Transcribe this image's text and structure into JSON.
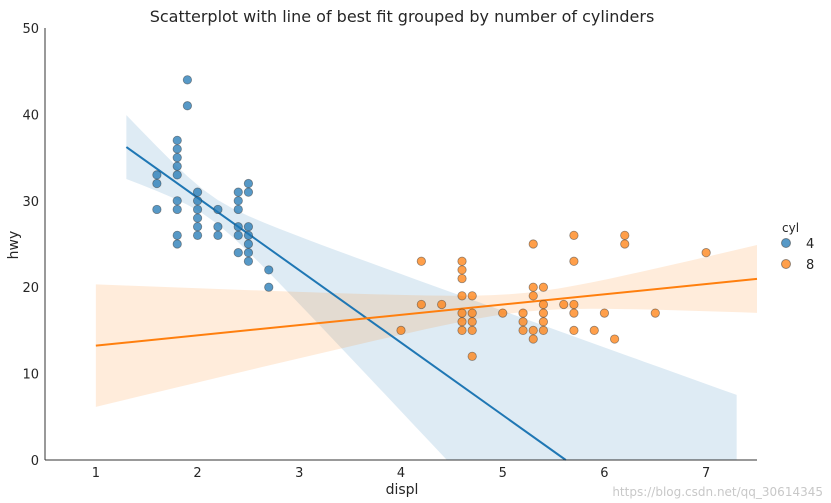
{
  "chart_data": {
    "type": "scatter",
    "title": "Scatterplot with line of best fit grouped by number of cylinders",
    "xlabel": "displ",
    "ylabel": "hwy",
    "xlim": [
      0.5,
      7.5
    ],
    "ylim": [
      0,
      50
    ],
    "xticks": [
      1,
      2,
      3,
      4,
      5,
      6,
      7
    ],
    "yticks": [
      0,
      10,
      20,
      30,
      40,
      50
    ],
    "grid": false,
    "legend": {
      "title": "cyl",
      "placement": "right"
    },
    "series": [
      {
        "name": "4",
        "color": "#1f77b4",
        "points": [
          [
            1.6,
            33
          ],
          [
            1.6,
            32
          ],
          [
            1.6,
            29
          ],
          [
            1.8,
            37
          ],
          [
            1.8,
            36
          ],
          [
            1.8,
            35
          ],
          [
            1.8,
            34
          ],
          [
            1.8,
            33
          ],
          [
            1.8,
            30
          ],
          [
            1.8,
            29
          ],
          [
            1.8,
            26
          ],
          [
            1.8,
            25
          ],
          [
            1.9,
            44
          ],
          [
            1.9,
            41
          ],
          [
            2.0,
            31
          ],
          [
            2.0,
            30
          ],
          [
            2.0,
            29
          ],
          [
            2.0,
            28
          ],
          [
            2.0,
            27
          ],
          [
            2.0,
            26
          ],
          [
            2.2,
            29
          ],
          [
            2.2,
            27
          ],
          [
            2.2,
            26
          ],
          [
            2.4,
            31
          ],
          [
            2.4,
            30
          ],
          [
            2.4,
            29
          ],
          [
            2.4,
            27
          ],
          [
            2.4,
            26
          ],
          [
            2.4,
            24
          ],
          [
            2.5,
            32
          ],
          [
            2.5,
            31
          ],
          [
            2.5,
            27
          ],
          [
            2.5,
            26
          ],
          [
            2.5,
            25
          ],
          [
            2.5,
            24
          ],
          [
            2.5,
            23
          ],
          [
            2.7,
            22
          ],
          [
            2.7,
            20
          ]
        ]
      },
      {
        "name": "8",
        "color": "#ff7f0e",
        "points": [
          [
            4.0,
            15
          ],
          [
            4.2,
            23
          ],
          [
            4.2,
            18
          ],
          [
            4.4,
            18
          ],
          [
            4.6,
            23
          ],
          [
            4.6,
            22
          ],
          [
            4.6,
            21
          ],
          [
            4.6,
            19
          ],
          [
            4.6,
            17
          ],
          [
            4.6,
            16
          ],
          [
            4.6,
            15
          ],
          [
            4.7,
            19
          ],
          [
            4.7,
            17
          ],
          [
            4.7,
            16
          ],
          [
            4.7,
            15
          ],
          [
            4.7,
            12
          ],
          [
            5.0,
            17
          ],
          [
            5.2,
            17
          ],
          [
            5.2,
            16
          ],
          [
            5.2,
            15
          ],
          [
            5.3,
            25
          ],
          [
            5.3,
            20
          ],
          [
            5.3,
            19
          ],
          [
            5.3,
            15
          ],
          [
            5.3,
            14
          ],
          [
            5.4,
            20
          ],
          [
            5.4,
            18
          ],
          [
            5.4,
            17
          ],
          [
            5.4,
            16
          ],
          [
            5.4,
            15
          ],
          [
            5.6,
            18
          ],
          [
            5.7,
            26
          ],
          [
            5.7,
            23
          ],
          [
            5.7,
            18
          ],
          [
            5.7,
            17
          ],
          [
            5.7,
            15
          ],
          [
            5.9,
            15
          ],
          [
            6.0,
            17
          ],
          [
            6.1,
            14
          ],
          [
            6.2,
            26
          ],
          [
            6.2,
            25
          ],
          [
            6.5,
            17
          ],
          [
            7.0,
            24
          ]
        ]
      }
    ]
  },
  "watermark": "https://blog.csdn.net/qq_30614345"
}
